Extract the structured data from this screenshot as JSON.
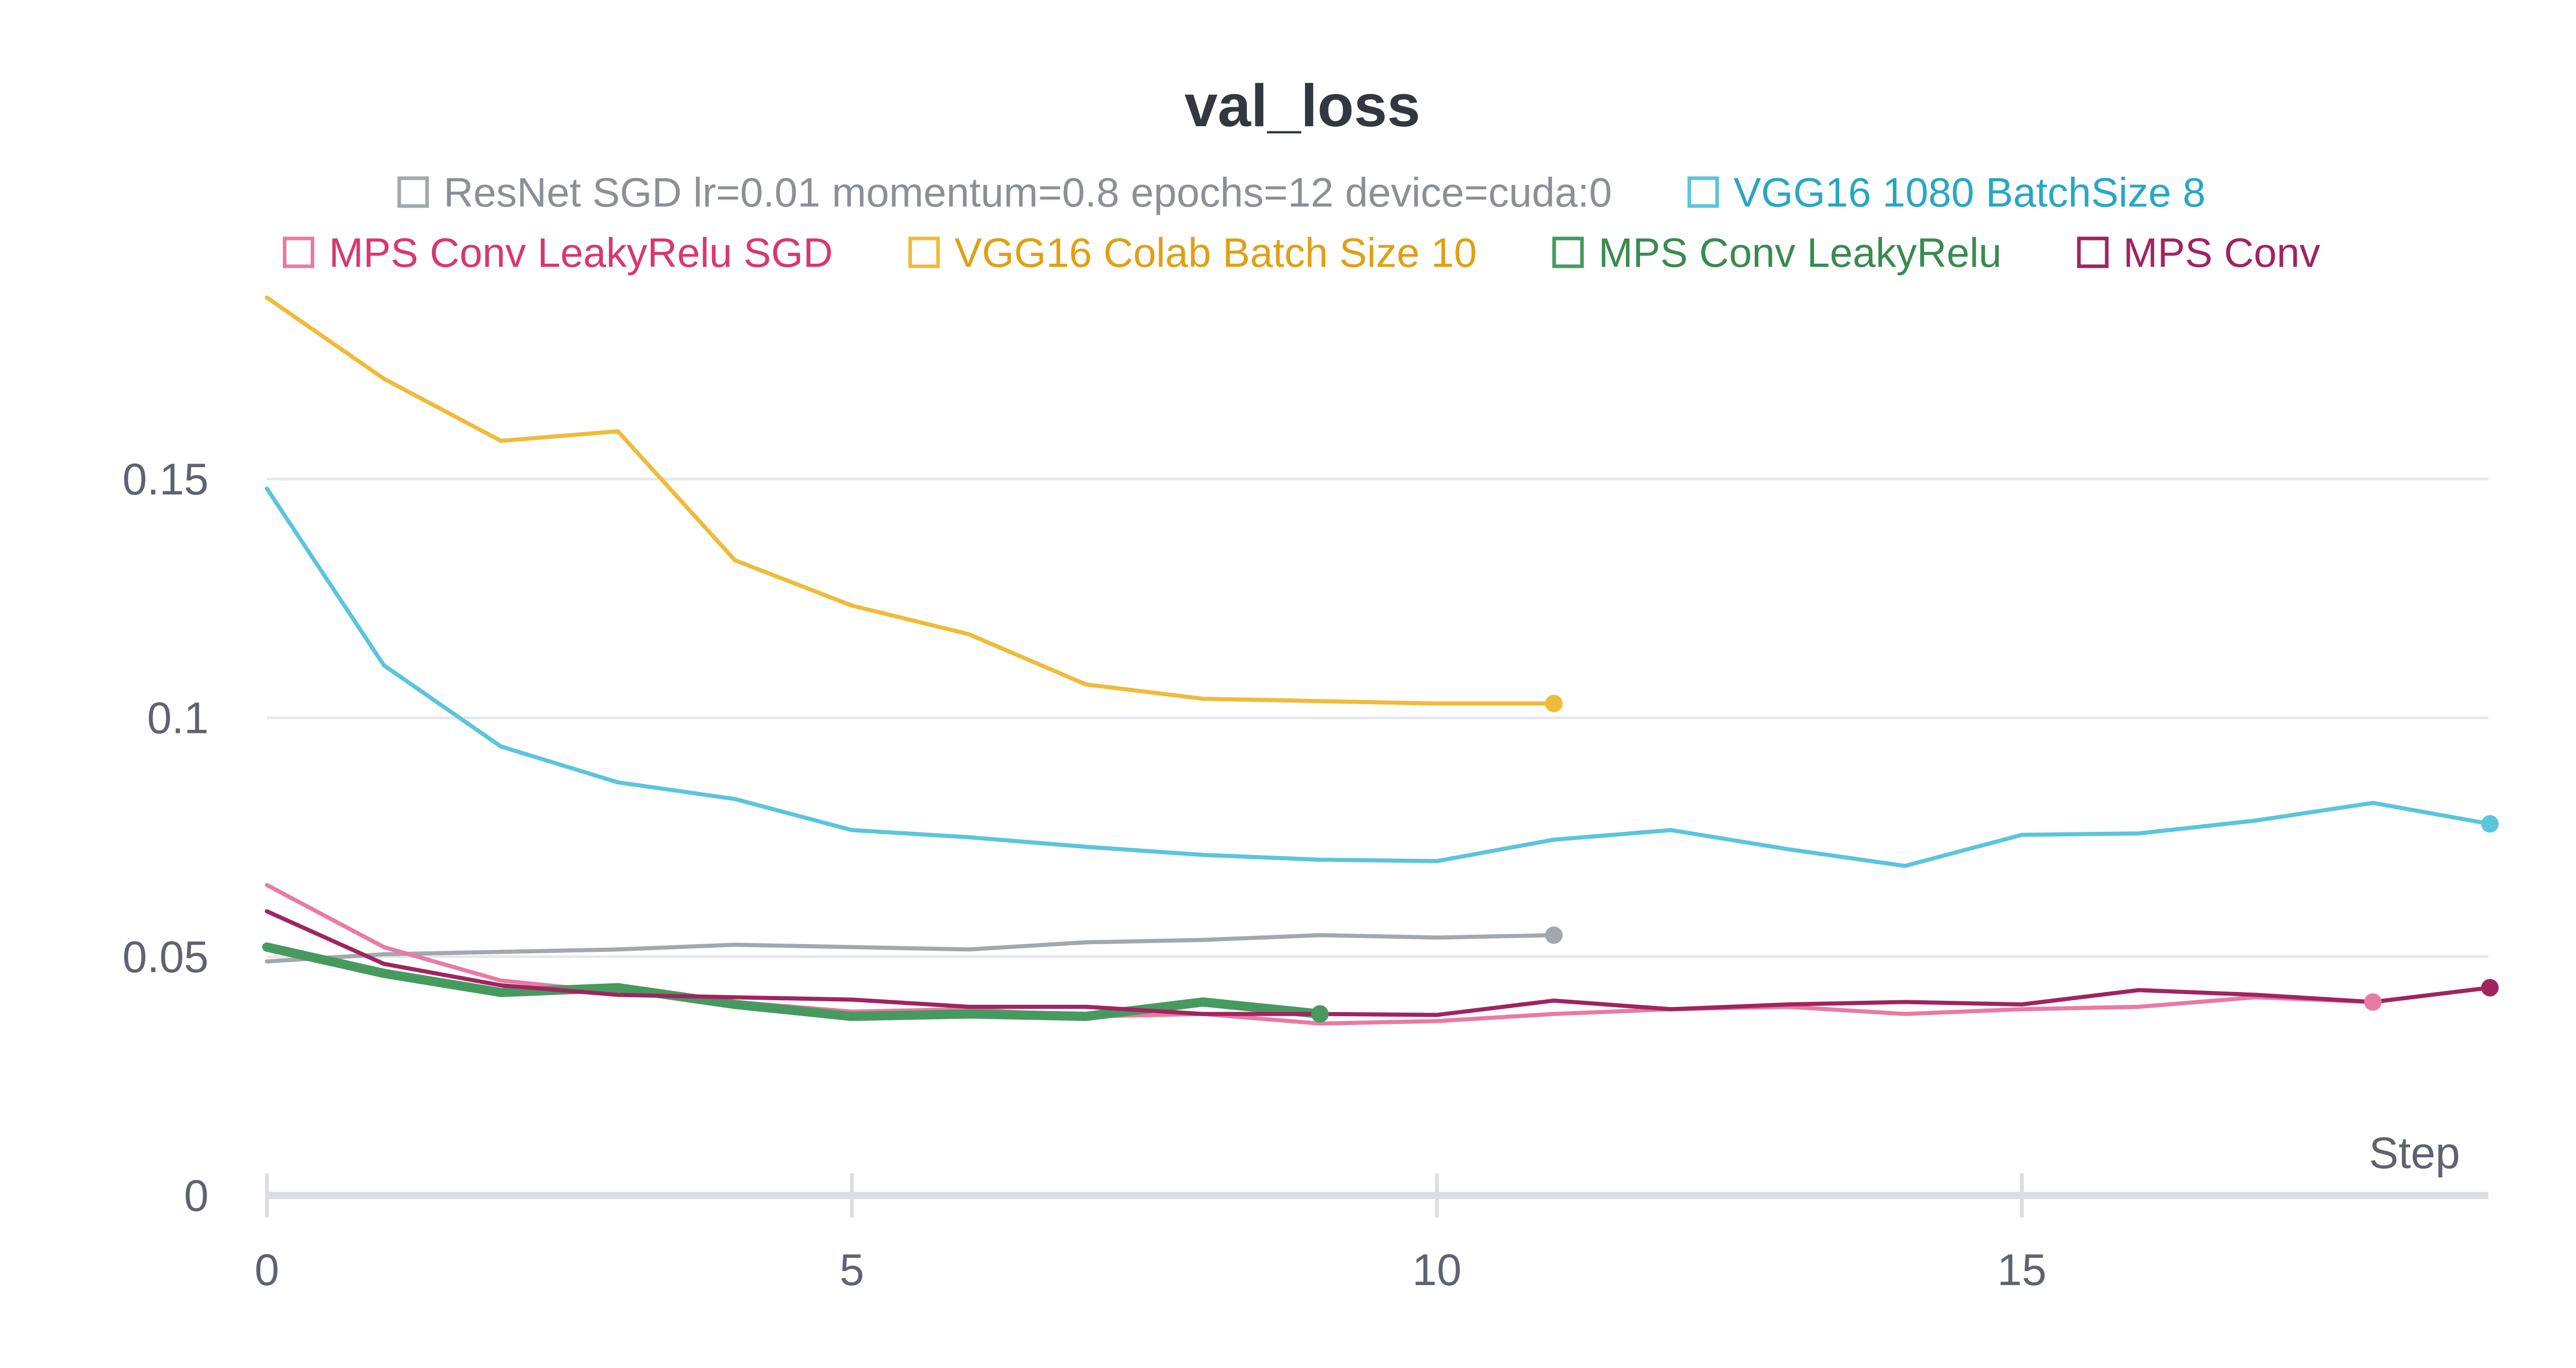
{
  "chart_data": {
    "type": "line",
    "title": "val_loss",
    "xlabel": "Step",
    "ylabel": "",
    "xlim": [
      0,
      19
    ],
    "ylim": [
      0,
      0.19
    ],
    "x_ticks": [
      0,
      5,
      10,
      15
    ],
    "x_tick_labels": [
      "0",
      "5",
      "10",
      "15"
    ],
    "y_ticks": [
      0,
      0.05,
      0.1,
      0.15
    ],
    "y_tick_labels": [
      "0",
      "0.05",
      "0.1",
      "0.15"
    ],
    "grid": true,
    "legend_position": "top",
    "series": [
      {
        "name": "ResNet SGD lr=0.01 momentum=0.8 epochs=12 device=cuda:0",
        "color": "#a3a8ad",
        "line_color": "#a3a8ad",
        "text_color": "#8c9096",
        "width": 8,
        "x": [
          0,
          1,
          2,
          3,
          4,
          5,
          6,
          7,
          8,
          9,
          10,
          11
        ],
        "y": [
          0.049,
          0.0505,
          0.051,
          0.0515,
          0.0525,
          0.052,
          0.0515,
          0.053,
          0.0535,
          0.0545,
          0.054,
          0.0545
        ]
      },
      {
        "name": "VGG16 1080 BatchSize 8",
        "color": "#5bc5db",
        "line_color": "#5bc5db",
        "text_color": "#27a7c4",
        "width": 8,
        "x": [
          0,
          1,
          2,
          3,
          4,
          5,
          6,
          7,
          8,
          9,
          10,
          11,
          12,
          13,
          14,
          15,
          16,
          17,
          18,
          19
        ],
        "y": [
          0.148,
          0.111,
          0.094,
          0.0865,
          0.083,
          0.0765,
          0.075,
          0.073,
          0.0713,
          0.0703,
          0.07,
          0.0745,
          0.0765,
          0.0725,
          0.069,
          0.0755,
          0.0758,
          0.0785,
          0.0822,
          0.0778
        ]
      },
      {
        "name": "MPS Conv LeakyRelu SGD",
        "color": "#e87ba4",
        "line_color": "#e87ba4",
        "text_color": "#d9376f",
        "width": 8,
        "x": [
          0,
          1,
          2,
          3,
          4,
          5,
          6,
          7,
          8,
          9,
          10,
          11,
          12,
          13,
          14,
          15,
          16,
          17,
          18
        ],
        "y": [
          0.065,
          0.052,
          0.045,
          0.0425,
          0.0405,
          0.0385,
          0.039,
          0.0375,
          0.038,
          0.036,
          0.0365,
          0.038,
          0.039,
          0.0395,
          0.038,
          0.039,
          0.0395,
          0.0415,
          0.0405
        ]
      },
      {
        "name": "VGG16 Colab Batch Size 10",
        "color": "#efbb3a",
        "line_color": "#efbb3a",
        "text_color": "#e0a014",
        "width": 8,
        "x": [
          0,
          1,
          2,
          3,
          4,
          5,
          6,
          7,
          8,
          9,
          10,
          11
        ],
        "y": [
          0.188,
          0.171,
          0.158,
          0.16,
          0.133,
          0.1235,
          0.1175,
          0.107,
          0.104,
          0.1035,
          0.103,
          0.103
        ]
      },
      {
        "name": "MPS Conv LeakyRelu",
        "color": "#479a5f",
        "line_color": "#479a5f",
        "text_color": "#3a8a50",
        "width": 18,
        "x": [
          0,
          1,
          2,
          3,
          4,
          5,
          6,
          7,
          8,
          9
        ],
        "y": [
          0.052,
          0.0465,
          0.0425,
          0.0435,
          0.04,
          0.0375,
          0.038,
          0.0375,
          0.0405,
          0.038
        ]
      },
      {
        "name": "MPS Conv",
        "color": "#a02461",
        "line_color": "#a02461",
        "text_color": "#a02461",
        "width": 8,
        "x": [
          0,
          1,
          2,
          3,
          4,
          5,
          6,
          7,
          8,
          9,
          10,
          11,
          12,
          13,
          14,
          15,
          16,
          17,
          18,
          19
        ],
        "y": [
          0.0595,
          0.0485,
          0.044,
          0.042,
          0.0415,
          0.041,
          0.0395,
          0.0395,
          0.038,
          0.038,
          0.0378,
          0.0408,
          0.039,
          0.04,
          0.0405,
          0.04,
          0.043,
          0.042,
          0.0405,
          0.0435
        ]
      }
    ]
  }
}
